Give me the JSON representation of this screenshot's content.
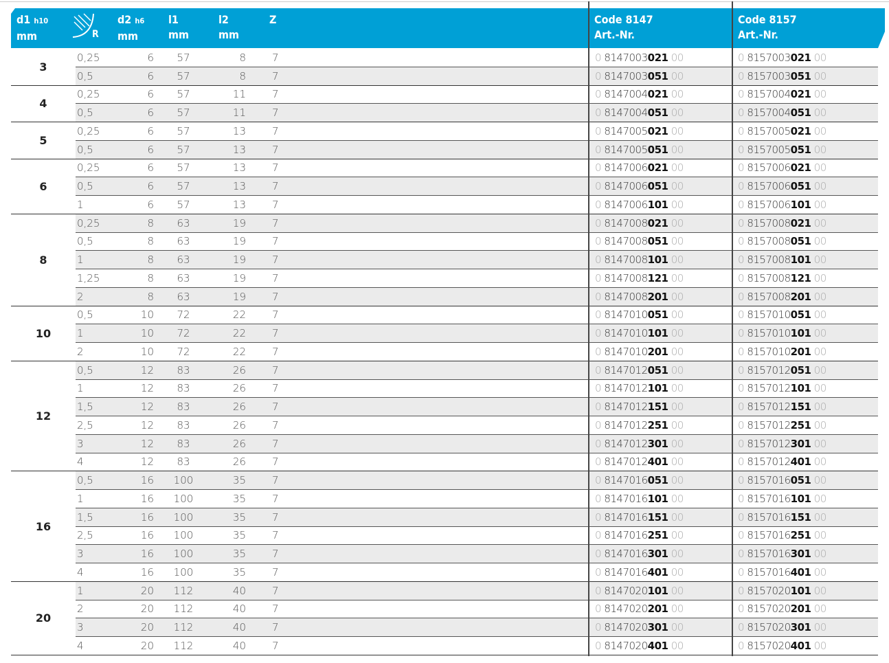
{
  "header": {
    "d1": "d1",
    "d1_sub": "h10",
    "d1_unit": "mm",
    "r_label": "R",
    "d2": "d2",
    "d2_sub": "h6",
    "d2_unit": "mm",
    "l1": "l1",
    "l1_unit": "mm",
    "l2": "l2",
    "l2_unit": "mm",
    "z": "Z",
    "code1": "Code 8147",
    "code1_sub": "Art.-Nr.",
    "code2": "Code 8157",
    "code2_sub": "Art.-Nr.",
    "color": "#00a0d6",
    "radius_icon": "corner-radius-icon"
  },
  "groups": [
    {
      "d1": "3",
      "rows": [
        [
          "0,25",
          "6",
          "57",
          "8",
          "7",
          "0814700302100",
          "0815700302100"
        ],
        [
          "0,5",
          "6",
          "57",
          "8",
          "7",
          "0814700305100",
          "0815700305100"
        ]
      ]
    },
    {
      "d1": "4",
      "rows": [
        [
          "0,25",
          "6",
          "57",
          "11",
          "7",
          "0814700402100",
          "0815700402100"
        ],
        [
          "0,5",
          "6",
          "57",
          "11",
          "7",
          "0814700405100",
          "0815700405100"
        ]
      ]
    },
    {
      "d1": "5",
      "rows": [
        [
          "0,25",
          "6",
          "57",
          "13",
          "7",
          "0814700502100",
          "0815700502100"
        ],
        [
          "0,5",
          "6",
          "57",
          "13",
          "7",
          "0814700505100",
          "0815700505100"
        ]
      ]
    },
    {
      "d1": "6",
      "rows": [
        [
          "0,25",
          "6",
          "57",
          "13",
          "7",
          "0814700602100",
          "0815700602100"
        ],
        [
          "0,5",
          "6",
          "57",
          "13",
          "7",
          "0814700605100",
          "0815700605100"
        ],
        [
          "1",
          "6",
          "57",
          "13",
          "7",
          "0814700610100",
          "0815700610100"
        ]
      ]
    },
    {
      "d1": "8",
      "rows": [
        [
          "0,25",
          "8",
          "63",
          "19",
          "7",
          "0814700802100",
          "0815700802100"
        ],
        [
          "0,5",
          "8",
          "63",
          "19",
          "7",
          "0814700805100",
          "0815700805100"
        ],
        [
          "1",
          "8",
          "63",
          "19",
          "7",
          "0814700810100",
          "0815700810100"
        ],
        [
          "1,25",
          "8",
          "63",
          "19",
          "7",
          "0814700812100",
          "0815700812100"
        ],
        [
          "2",
          "8",
          "63",
          "19",
          "7",
          "0814700820100",
          "0815700820100"
        ]
      ]
    },
    {
      "d1": "10",
      "rows": [
        [
          "0,5",
          "10",
          "72",
          "22",
          "7",
          "0814701005100",
          "0815701005100"
        ],
        [
          "1",
          "10",
          "72",
          "22",
          "7",
          "0814701010100",
          "0815701010100"
        ],
        [
          "2",
          "10",
          "72",
          "22",
          "7",
          "0814701020100",
          "0815701020100"
        ]
      ]
    },
    {
      "d1": "12",
      "rows": [
        [
          "0,5",
          "12",
          "83",
          "26",
          "7",
          "0814701205100",
          "0815701205100"
        ],
        [
          "1",
          "12",
          "83",
          "26",
          "7",
          "0814701210100",
          "0815701210100"
        ],
        [
          "1,5",
          "12",
          "83",
          "26",
          "7",
          "0814701215100",
          "0815701215100"
        ],
        [
          "2,5",
          "12",
          "83",
          "26",
          "7",
          "0814701225100",
          "0815701225100"
        ],
        [
          "3",
          "12",
          "83",
          "26",
          "7",
          "0814701230100",
          "0815701230100"
        ],
        [
          "4",
          "12",
          "83",
          "26",
          "7",
          "0814701240100",
          "0815701240100"
        ]
      ]
    },
    {
      "d1": "16",
      "rows": [
        [
          "0,5",
          "16",
          "100",
          "35",
          "7",
          "0814701605100",
          "0815701605100"
        ],
        [
          "1",
          "16",
          "100",
          "35",
          "7",
          "0814701610100",
          "0815701610100"
        ],
        [
          "1,5",
          "16",
          "100",
          "35",
          "7",
          "0814701615100",
          "0815701615100"
        ],
        [
          "2,5",
          "16",
          "100",
          "35",
          "7",
          "0814701625100",
          "0815701625100"
        ],
        [
          "3",
          "16",
          "100",
          "35",
          "7",
          "0814701630100",
          "0815701630100"
        ],
        [
          "4",
          "16",
          "100",
          "35",
          "7",
          "0814701640100",
          "0815701640100"
        ]
      ]
    },
    {
      "d1": "20",
      "rows": [
        [
          "1",
          "20",
          "112",
          "40",
          "7",
          "0814702010100",
          "0815702010100"
        ],
        [
          "2",
          "20",
          "112",
          "40",
          "7",
          "0814702020100",
          "0815702020100"
        ],
        [
          "3",
          "20",
          "112",
          "40",
          "7",
          "0814702030100",
          "0815702030100"
        ],
        [
          "4",
          "20",
          "112",
          "40",
          "7",
          "0814702040100",
          "0815702040100"
        ]
      ]
    }
  ]
}
